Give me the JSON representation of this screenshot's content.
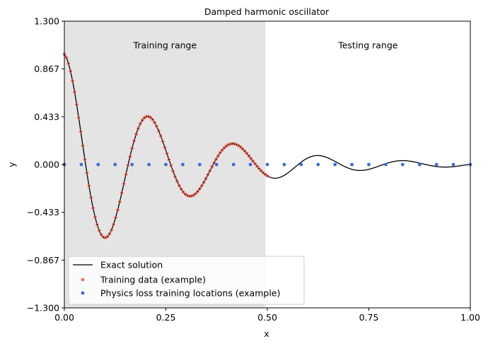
{
  "chart_data": {
    "type": "line",
    "title": "Damped harmonic oscillator",
    "xlabel": "x",
    "ylabel": "y",
    "xlim": [
      0.0,
      1.0
    ],
    "ylim": [
      -1.3,
      1.3
    ],
    "xticks": [
      "0.00",
      "0.25",
      "0.50",
      "0.75",
      "1.00"
    ],
    "yticks": [
      "1.300",
      "0.867",
      "0.433",
      "0.000",
      "−0.433",
      "−0.867",
      "−1.300"
    ],
    "grid": false,
    "legend_position": "lower-left",
    "shaded_region": {
      "x0": 0.0,
      "x1": 0.4952,
      "color": "#e4e4e4"
    },
    "annotations": [
      {
        "text": "Training range",
        "x": 0.248,
        "y": 1.08
      },
      {
        "text": "Testing range",
        "x": 0.748,
        "y": 1.08
      }
    ],
    "series": [
      {
        "name": "Exact solution",
        "kind": "line",
        "color": "#000000",
        "model": {
          "amplitude": 1.0,
          "decay": 4.0,
          "omega": 30.0,
          "x_start": 0.0,
          "x_end": 1.0
        }
      },
      {
        "name": "Training data (example)",
        "kind": "scatter",
        "color": "#f0705e",
        "model": {
          "x_start": 0.0,
          "x_end": 0.5,
          "count": 100
        }
      },
      {
        "name": "Physics loss training locations (example)",
        "kind": "scatter",
        "color": "#4169d8",
        "x": [
          0.0,
          0.0417,
          0.0833,
          0.125,
          0.1667,
          0.2083,
          0.25,
          0.2917,
          0.3333,
          0.375,
          0.4167,
          0.4583,
          0.5,
          0.5417,
          0.5833,
          0.625,
          0.6667,
          0.7083,
          0.75,
          0.7917,
          0.8333,
          0.875,
          0.9167,
          0.9583,
          1.0
        ],
        "y": [
          0,
          0,
          0,
          0,
          0,
          0,
          0,
          0,
          0,
          0,
          0,
          0,
          0,
          0,
          0,
          0,
          0,
          0,
          0,
          0,
          0,
          0,
          0,
          0,
          0
        ]
      }
    ]
  }
}
